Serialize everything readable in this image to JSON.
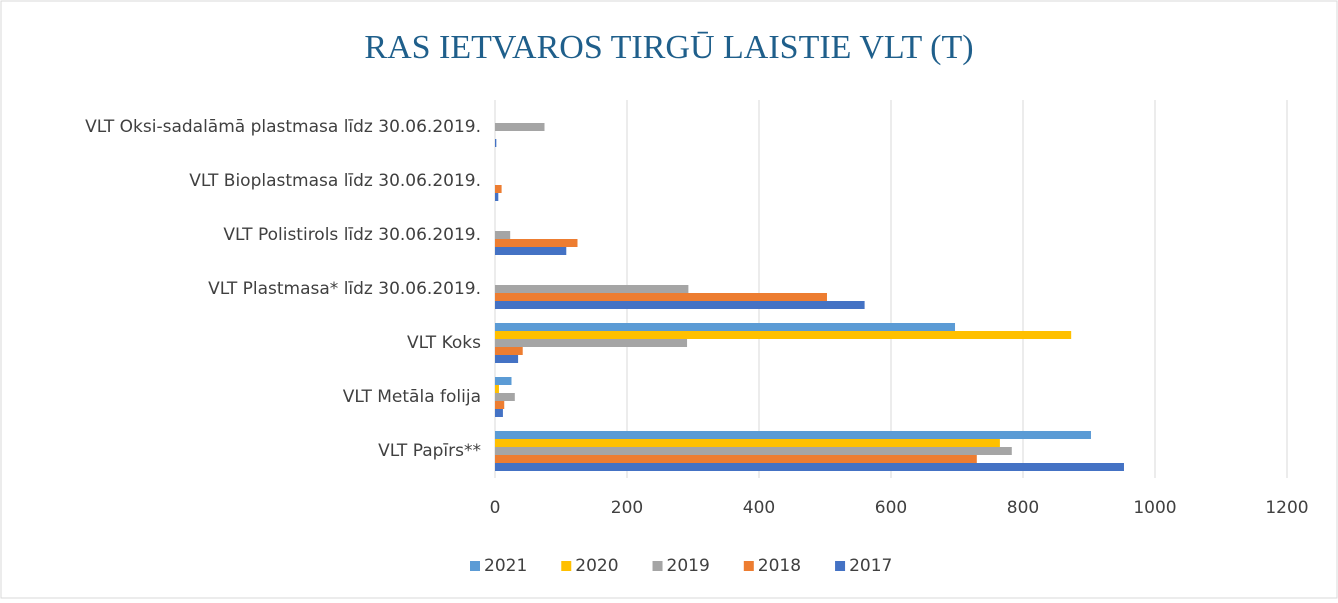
{
  "chart_data": {
    "type": "bar",
    "orientation": "horizontal",
    "title": "RAS IETVAROS TIRGŪ LAISTIE VLT (T)",
    "categories": [
      "VLT Papīrs**",
      "VLT Metāla folija",
      "VLT Koks",
      "VLT Plastmasa* līdz 30.06.2019.",
      "VLT Polistirols līdz 30.06.2019.",
      "VLT Bioplastmasa līdz 30.06.2019.",
      "VLT Oksi-sadalāmā plastmasa līdz 30.06.2019."
    ],
    "series": [
      {
        "name": "2021",
        "color": "#5b9bd5",
        "values": [
          903,
          25,
          697,
          0,
          0,
          0,
          0
        ]
      },
      {
        "name": "2020",
        "color": "#ffc000",
        "values": [
          765,
          6,
          873,
          0,
          0,
          0,
          0
        ]
      },
      {
        "name": "2019",
        "color": "#a5a5a5",
        "values": [
          783,
          30,
          291,
          293,
          23,
          0,
          75
        ]
      },
      {
        "name": "2018",
        "color": "#ed7d31",
        "values": [
          730,
          14,
          42,
          503,
          125,
          10,
          0
        ]
      },
      {
        "name": "2017",
        "color": "#4472c4",
        "values": [
          953,
          12,
          35,
          560,
          108,
          5,
          2
        ]
      }
    ],
    "xlim": [
      0,
      1200
    ],
    "xticks": [
      0,
      200,
      400,
      600,
      800,
      1000,
      1200
    ],
    "grid": true,
    "legend": "bottom"
  }
}
